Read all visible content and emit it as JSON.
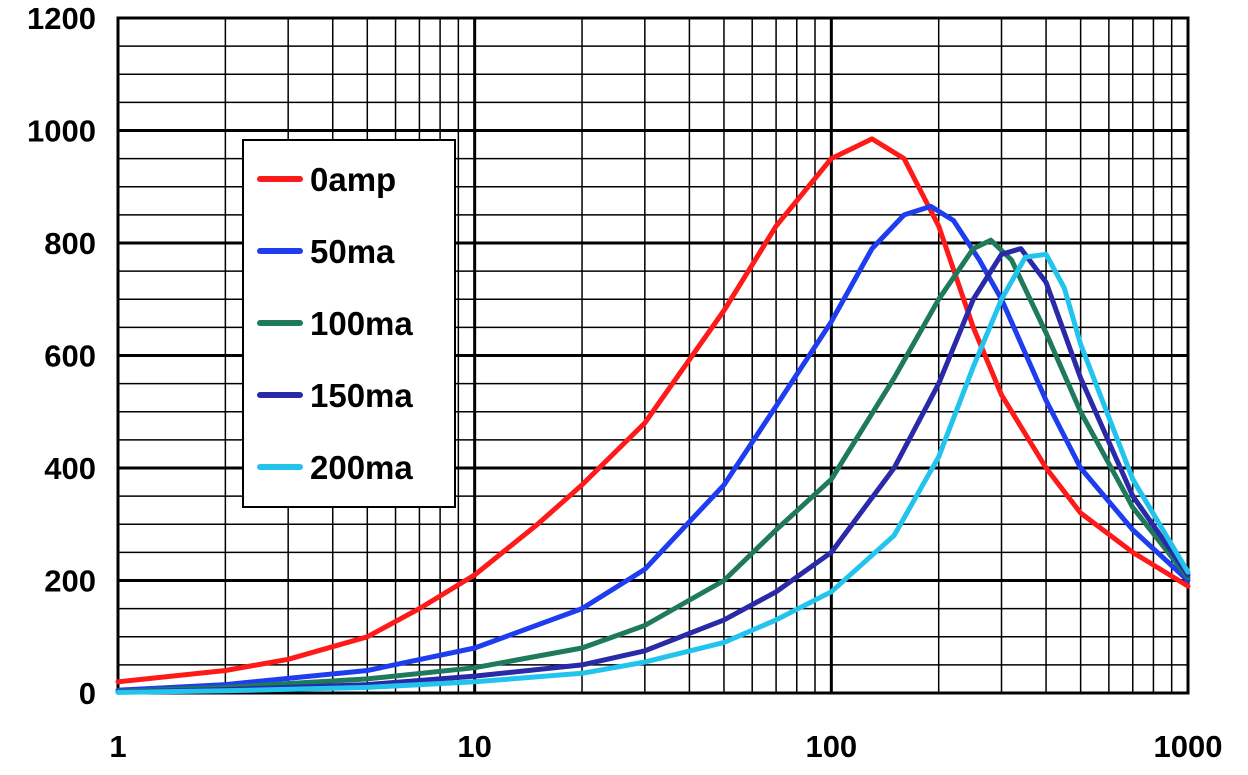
{
  "chart_data": {
    "type": "line",
    "title": "",
    "xlabel": "",
    "ylabel": "",
    "xscale": "log",
    "xlim": [
      1,
      1000
    ],
    "ylim": [
      0,
      1200
    ],
    "grid": true,
    "legend_position": "upper-left inside plot",
    "x_tick_labels": [
      "1",
      "10",
      "100",
      "1000"
    ],
    "y_tick_labels": [
      "0",
      "200",
      "400",
      "600",
      "800",
      "1000",
      "1200"
    ],
    "series": [
      {
        "name": "0amp",
        "color": "#ff1a1a",
        "x": [
          1,
          2,
          3,
          5,
          7,
          10,
          15,
          20,
          30,
          50,
          70,
          100,
          130,
          160,
          200,
          250,
          300,
          400,
          500,
          700,
          1000
        ],
        "y": [
          20,
          40,
          60,
          100,
          150,
          210,
          300,
          370,
          480,
          680,
          830,
          950,
          985,
          950,
          830,
          650,
          530,
          400,
          320,
          250,
          190
        ]
      },
      {
        "name": "50ma",
        "color": "#1f3df0",
        "x": [
          1,
          2,
          5,
          10,
          20,
          30,
          50,
          70,
          100,
          130,
          160,
          190,
          220,
          260,
          300,
          400,
          500,
          700,
          1000
        ],
        "y": [
          5,
          15,
          40,
          80,
          150,
          220,
          370,
          510,
          660,
          790,
          850,
          865,
          840,
          770,
          700,
          520,
          400,
          290,
          200
        ]
      },
      {
        "name": "100ma",
        "color": "#1f7a5c",
        "x": [
          1,
          2,
          5,
          10,
          20,
          30,
          50,
          70,
          100,
          150,
          200,
          250,
          280,
          320,
          400,
          500,
          700,
          1000
        ],
        "y": [
          3,
          10,
          25,
          45,
          80,
          120,
          200,
          290,
          380,
          560,
          700,
          790,
          805,
          770,
          640,
          500,
          330,
          205
        ]
      },
      {
        "name": "150ma",
        "color": "#2a2aa8",
        "x": [
          1,
          2,
          5,
          10,
          20,
          30,
          50,
          70,
          100,
          150,
          200,
          250,
          300,
          340,
          400,
          500,
          700,
          1000
        ],
        "y": [
          2,
          6,
          15,
          30,
          50,
          75,
          130,
          180,
          250,
          400,
          550,
          700,
          780,
          790,
          730,
          560,
          350,
          210
        ]
      },
      {
        "name": "200ma",
        "color": "#22c4ee",
        "x": [
          1,
          2,
          5,
          10,
          20,
          30,
          50,
          70,
          100,
          150,
          200,
          250,
          300,
          350,
          400,
          450,
          500,
          700,
          1000
        ],
        "y": [
          1,
          4,
          10,
          20,
          35,
          55,
          90,
          130,
          180,
          280,
          420,
          580,
          700,
          775,
          780,
          720,
          620,
          380,
          215
        ]
      }
    ]
  }
}
